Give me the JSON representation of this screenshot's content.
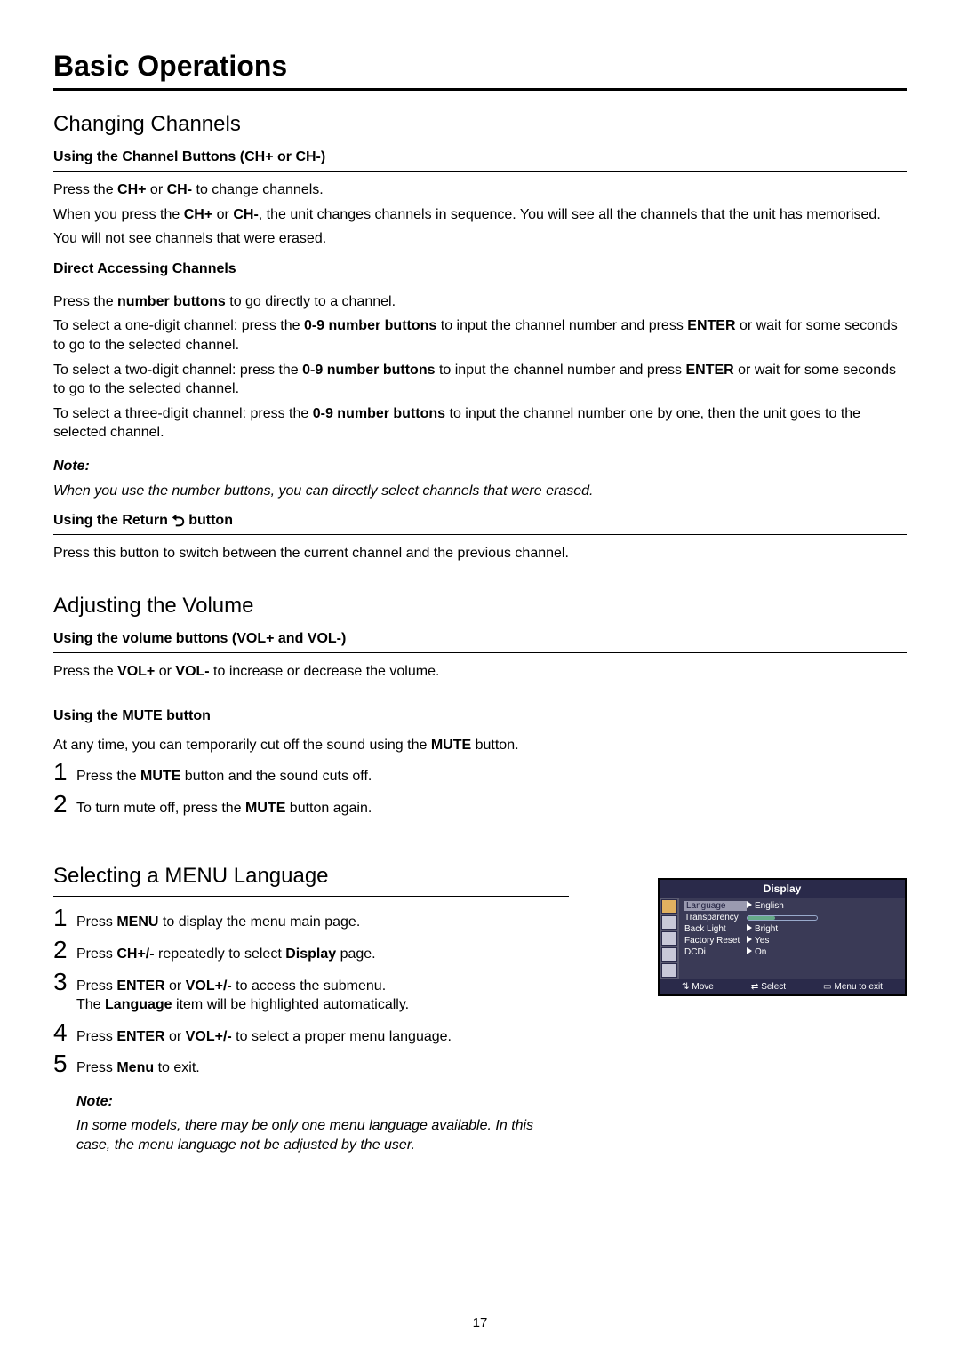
{
  "title": "Basic Operations",
  "section1": {
    "heading": "Changing Channels",
    "sub1": {
      "title": "Using the Channel Buttons (CH+ or CH-)",
      "p1_a": "Press the ",
      "p1_b": "CH+",
      "p1_c": " or ",
      "p1_d": "CH-",
      "p1_e": " to change channels.",
      "p2_a": "When you press the ",
      "p2_b": "CH+",
      "p2_c": " or ",
      "p2_d": "CH-",
      "p2_e": ", the unit changes channels in sequence. You will see all the channels that the unit has memorised.",
      "p3": "You will not see channels that were erased."
    },
    "sub2": {
      "title": "Direct Accessing Channels",
      "p1_a": "Press the ",
      "p1_b": "number buttons",
      "p1_c": " to go directly to a channel.",
      "p2_a": "To select a one-digit channel: press the ",
      "p2_b": "0-9 number buttons",
      "p2_c": " to input the channel number and press ",
      "p2_d": "ENTER",
      "p2_e": " or wait for some seconds to go to the selected channel.",
      "p3_a": "To select a two-digit channel: press the ",
      "p3_b": "0-9 number buttons",
      "p3_c": " to input the channel number and press ",
      "p3_d": "ENTER",
      "p3_e": " or wait for some seconds to go to the selected channel.",
      "p4_a": "To select a three-digit channel: press the ",
      "p4_b": "0-9 number buttons",
      "p4_c": " to input the channel number one by one, then the unit goes to the selected channel.",
      "note_label": "Note:",
      "note_text": "When you use the number buttons, you can directly select channels that were erased."
    },
    "sub3": {
      "title_a": "Using the Return ",
      "title_b": " button",
      "p1": "Press this button to switch between the current channel and the previous channel."
    }
  },
  "section2": {
    "heading": "Adjusting the Volume",
    "sub1": {
      "title": "Using the volume buttons (VOL+ and VOL-)",
      "p1_a": "Press the ",
      "p1_b": "VOL+",
      "p1_c": " or ",
      "p1_d": "VOL-",
      "p1_e": " to increase or decrease the volume."
    },
    "sub2": {
      "title": "Using the MUTE button",
      "p1_a": "At any time, you can temporarily cut off the sound using the ",
      "p1_b": "MUTE",
      "p1_c": " button.",
      "step1_n": "1",
      "step1_a": "Press the ",
      "step1_b": "MUTE",
      "step1_c": " button and the sound cuts off.",
      "step2_n": "2",
      "step2_a": "To turn mute off, press the ",
      "step2_b": "MUTE",
      "step2_c": " button again."
    }
  },
  "section3": {
    "heading": "Selecting a MENU Language",
    "step1_n": "1",
    "step1_a": "Press ",
    "step1_b": "MENU",
    "step1_c": " to display the menu main page.",
    "step2_n": "2",
    "step2_a": "Press ",
    "step2_b": "CH+/-",
    "step2_c": " repeatedly to select ",
    "step2_d": "Display",
    "step2_e": " page.",
    "step3_n": "3",
    "step3_a": "Press ",
    "step3_b": "ENTER",
    "step3_c": " or ",
    "step3_d": "VOL+/-",
    "step3_e": " to access the submenu.",
    "step3_line2_a": "The ",
    "step3_line2_b": "Language",
    "step3_line2_c": " item will be highlighted automatically.",
    "step4_n": "4",
    "step4_a": "Press ",
    "step4_b": "ENTER",
    "step4_c": " or ",
    "step4_d": "VOL+/-",
    "step4_e": " to select a proper menu language.",
    "step5_n": "5",
    "step5_a": "Press ",
    "step5_b": "Menu",
    "step5_c": " to exit.",
    "note_label": "Note:",
    "note_text": "In some models, there may be only one menu language available. In this case, the menu language not be adjusted by the user."
  },
  "menu_fig": {
    "header": "Display",
    "rows": [
      {
        "label": "Language",
        "value": "English",
        "selected": true,
        "type": "text"
      },
      {
        "label": "Transparency",
        "value": "",
        "selected": false,
        "type": "slider"
      },
      {
        "label": "Back Light",
        "value": "Bright",
        "selected": false,
        "type": "text"
      },
      {
        "label": "Factory Reset",
        "value": "Yes",
        "selected": false,
        "type": "text"
      },
      {
        "label": "DCDi",
        "value": "On",
        "selected": false,
        "type": "text"
      }
    ],
    "footer": {
      "move": "Move",
      "select": "Select",
      "exit": "Menu to exit"
    }
  },
  "page_number": "17"
}
